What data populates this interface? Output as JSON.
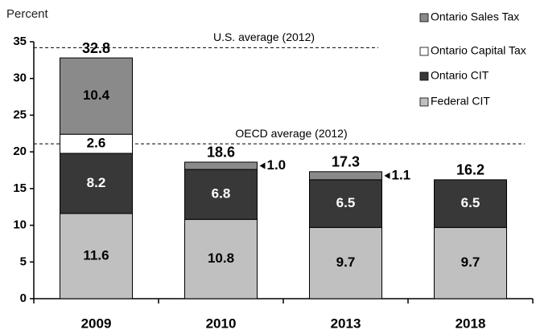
{
  "chart_data": {
    "type": "stacked_bar",
    "y_label": "Percent",
    "categories": [
      "2009",
      "2010",
      "2013",
      "2018"
    ],
    "series": [
      {
        "name": "Federal CIT",
        "color": "#c0c0c0",
        "values": [
          11.6,
          10.8,
          9.7,
          9.7
        ]
      },
      {
        "name": "Ontario CIT",
        "color": "#383838",
        "values": [
          8.2,
          6.8,
          6.5,
          6.5
        ]
      },
      {
        "name": "Ontario Capital Tax",
        "color": "#ffffff",
        "values": [
          2.6,
          null,
          null,
          null
        ]
      },
      {
        "name": "Ontario Sales Tax",
        "color": "#8a8a8a",
        "values": [
          10.4,
          1,
          1.1,
          null
        ],
        "value_labels": [
          "10.4",
          "1.0",
          "1.1",
          null
        ]
      }
    ],
    "totals": [
      32.8,
      18.6,
      17.3,
      16.2
    ],
    "reference_lines": [
      {
        "label": "U.S. average (2012)",
        "value": 34.2
      },
      {
        "label": "OECD average (2012)",
        "value": 21.1
      }
    ],
    "ylim": [
      0,
      35
    ],
    "yticks": [
      0,
      5,
      10,
      15,
      20,
      25,
      30,
      35
    ],
    "legend": "top-right"
  }
}
